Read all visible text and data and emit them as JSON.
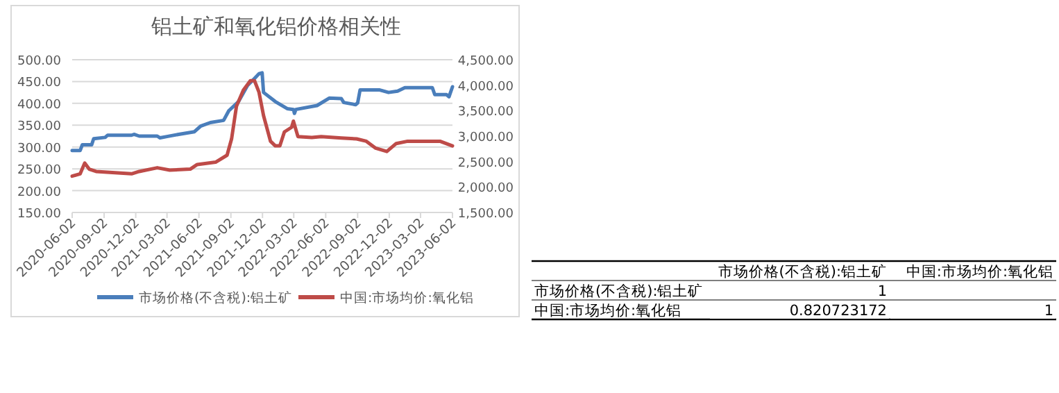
{
  "chart_data": [
    {
      "type": "line",
      "title": "铝土矿和氧化铝价格相关性",
      "xlim": [
        "2020-06-02",
        "2023-06-02"
      ],
      "xticks": [
        "2020-06-02",
        "2020-09-02",
        "2020-12-02",
        "2021-03-02",
        "2021-06-02",
        "2021-09-02",
        "2021-12-02",
        "2022-03-02",
        "2022-06-02",
        "2022-09-02",
        "2022-12-02",
        "2023-03-02",
        "2023-06-02"
      ],
      "ylim": [
        150,
        500
      ],
      "yticks": [
        {
          "value": 150,
          "label": "150.00"
        },
        {
          "value": 200,
          "label": "200.00"
        },
        {
          "value": 250,
          "label": "250.00"
        },
        {
          "value": 300,
          "label": "300.00"
        },
        {
          "value": 350,
          "label": "350.00"
        },
        {
          "value": 400,
          "label": "400.00"
        },
        {
          "value": 450,
          "label": "450.00"
        },
        {
          "value": 500,
          "label": "500.00"
        }
      ],
      "y2lim": [
        1500,
        4500
      ],
      "y2ticks": [
        {
          "value": 1500,
          "label": "1,500.00"
        },
        {
          "value": 2000,
          "label": "2,000.00"
        },
        {
          "value": 2500,
          "label": "2,500.00"
        },
        {
          "value": 3000,
          "label": "3,000.00"
        },
        {
          "value": 3500,
          "label": "3,500.00"
        },
        {
          "value": 4000,
          "label": "4,000.00"
        },
        {
          "value": 4500,
          "label": "4,500.00"
        }
      ],
      "grid": "y",
      "legend": "bottom",
      "line_style": "solid",
      "marker": "none",
      "series": [
        {
          "name": "市场价格(不含税):铝土矿",
          "color": "#4a7ebb",
          "x": [
            "2020-06-02",
            "2020-06-25",
            "2020-07-01",
            "2020-07-28",
            "2020-08-03",
            "2020-09-05",
            "2020-09-12",
            "2020-11-20",
            "2020-11-27",
            "2020-12-12",
            "2021-02-02",
            "2021-02-10",
            "2021-03-02",
            "2021-04-05",
            "2021-05-20",
            "2021-06-07",
            "2021-07-05",
            "2021-08-12",
            "2021-08-27",
            "2021-09-24",
            "2021-10-20",
            "2021-11-09",
            "2021-11-22",
            "2021-12-01",
            "2021-12-05",
            "2022-01-08",
            "2022-02-11",
            "2022-03-01",
            "2022-03-04",
            "2022-03-08",
            "2022-05-08",
            "2022-06-12",
            "2022-07-17",
            "2022-07-24",
            "2022-08-27",
            "2022-09-02",
            "2022-09-09",
            "2022-11-03",
            "2022-11-30",
            "2022-12-26",
            "2023-01-16",
            "2023-04-05",
            "2023-04-12",
            "2023-05-16",
            "2023-05-23",
            "2023-06-02"
          ],
          "values": [
            292,
            292,
            305,
            305,
            319,
            322,
            327,
            327,
            329,
            325,
            325,
            321,
            324,
            329,
            335,
            348,
            356,
            361,
            383,
            404,
            441,
            457,
            468,
            470,
            425,
            404,
            388,
            386,
            377,
            386,
            395,
            412,
            411,
            402,
            397,
            401,
            431,
            431,
            425,
            428,
            436,
            436,
            420,
            420,
            415,
            438
          ]
        },
        {
          "name": "中国:市场均价:氧化铝",
          "color": "#be4b48",
          "axis": "y2",
          "x": [
            "2020-06-02",
            "2020-06-25",
            "2020-07-08",
            "2020-07-21",
            "2020-08-10",
            "2020-09-18",
            "2020-11-20",
            "2020-12-12",
            "2021-02-02",
            "2021-03-10",
            "2021-05-08",
            "2021-05-28",
            "2021-07-20",
            "2021-08-22",
            "2021-09-04",
            "2021-09-18",
            "2021-10-08",
            "2021-10-28",
            "2021-11-09",
            "2021-11-22",
            "2021-12-05",
            "2021-12-25",
            "2022-01-08",
            "2022-01-21",
            "2022-02-03",
            "2022-02-24",
            "2022-03-01",
            "2022-03-14",
            "2022-04-23",
            "2022-05-20",
            "2022-07-17",
            "2022-08-30",
            "2022-09-27",
            "2022-10-24",
            "2022-11-25",
            "2022-12-22",
            "2023-01-24",
            "2023-04-27",
            "2023-06-02"
          ],
          "values": [
            2213,
            2259,
            2470,
            2351,
            2305,
            2287,
            2259,
            2305,
            2378,
            2332,
            2351,
            2442,
            2488,
            2625,
            2945,
            3585,
            3905,
            4088,
            4088,
            3860,
            3402,
            2899,
            2808,
            2808,
            3082,
            3174,
            3293,
            2991,
            2973,
            2991,
            2963,
            2945,
            2899,
            2762,
            2698,
            2854,
            2899,
            2899,
            2808
          ]
        }
      ]
    },
    {
      "type": "heatmap",
      "categories": [
        "市场价格(不含税):铝土矿",
        "中国:市场均价:氧化铝"
      ],
      "y_categories": [
        "市场价格(不含税):铝土矿",
        "中国:市场均价:氧化铝"
      ],
      "cells": [
        [
          1,
          null
        ],
        [
          0.820723172,
          1
        ]
      ],
      "data_labels": true
    }
  ]
}
